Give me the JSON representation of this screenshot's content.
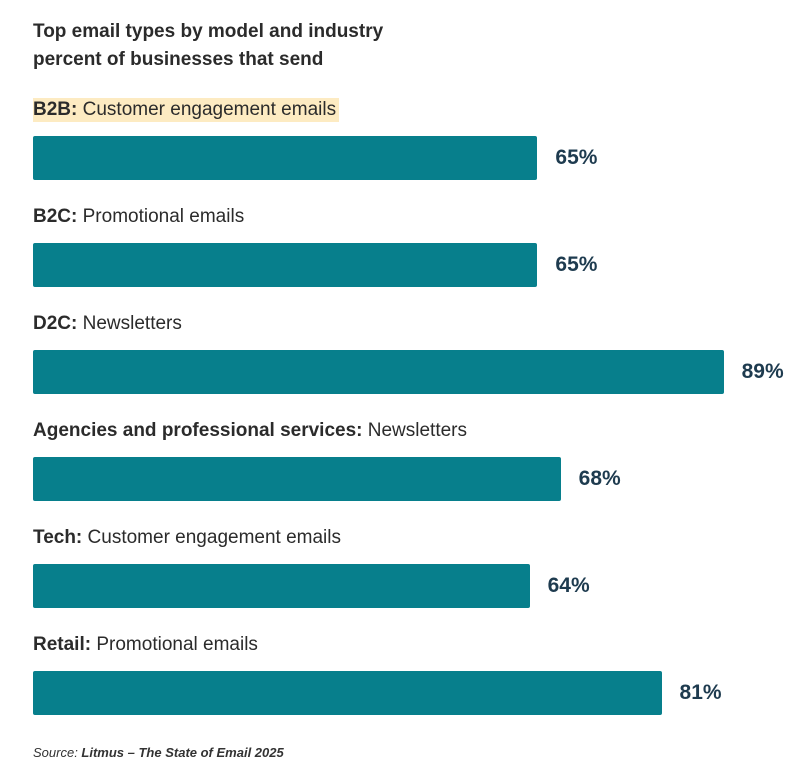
{
  "title_line1": "Top email types by model and industry",
  "title_line2": "percent of businesses that send",
  "source": {
    "lead": "Source: ",
    "name": "Litmus – The State of Email 2025"
  },
  "colors": {
    "bar": "#077f8c",
    "value_text": "#1e3b4f",
    "highlight": "#fdebc2"
  },
  "chart_data": {
    "type": "bar",
    "orientation": "horizontal",
    "title": "Top email types by model and industry",
    "subtitle": "percent of businesses that send",
    "unit": "%",
    "xlim": [
      0,
      100
    ],
    "categories": [
      {
        "segment": "B2B:",
        "email_type": "Customer engagement emails",
        "value": 65,
        "label": "65%",
        "highlighted": true
      },
      {
        "segment": "B2C:",
        "email_type": "Promotional emails",
        "value": 65,
        "label": "65%",
        "highlighted": false
      },
      {
        "segment": "D2C:",
        "email_type": "Newsletters",
        "value": 89,
        "label": "89%",
        "highlighted": false
      },
      {
        "segment": "Agencies and professional services:",
        "email_type": "Newsletters",
        "value": 68,
        "label": "68%",
        "highlighted": false
      },
      {
        "segment": "Tech:",
        "email_type": "Customer engagement emails",
        "value": 64,
        "label": "64%",
        "highlighted": false
      },
      {
        "segment": "Retail:",
        "email_type": "Promotional emails",
        "value": 81,
        "label": "81%",
        "highlighted": false
      }
    ]
  }
}
